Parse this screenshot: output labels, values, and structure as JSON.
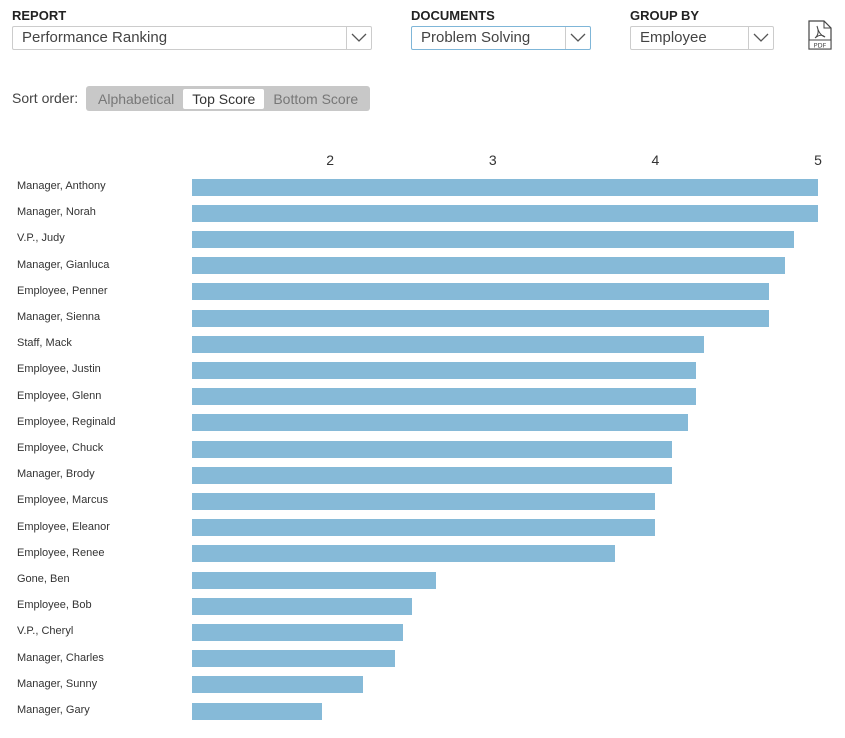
{
  "controls": {
    "report": {
      "label": "REPORT",
      "value": "Performance Ranking"
    },
    "documents": {
      "label": "DOCUMENTS",
      "value": "Problem Solving"
    },
    "group_by": {
      "label": "GROUP BY",
      "value": "Employee"
    },
    "pdf_icon": "pdf-file-icon"
  },
  "sort": {
    "label": "Sort order:",
    "options": [
      "Alphabetical",
      "Top Score",
      "Bottom Score"
    ],
    "selected": "Top Score"
  },
  "chart_data": {
    "type": "bar",
    "orientation": "horizontal",
    "xlim": [
      1.15,
      5
    ],
    "xticks": [
      "2",
      "3",
      "4",
      "5"
    ],
    "grid": false,
    "color": "#86bad8",
    "categories": [
      "Manager, Anthony",
      "Manager, Norah",
      "V.P., Judy",
      "Manager, Gianluca",
      "Employee, Penner",
      "Manager, Sienna",
      "Staff, Mack",
      "Employee, Justin",
      "Employee, Glenn",
      "Employee, Reginald",
      "Employee, Chuck",
      "Manager, Brody",
      "Employee, Marcus",
      "Employee, Eleanor",
      "Employee, Renee",
      "Gone, Ben",
      "Employee, Bob",
      "V.P., Cheryl",
      "Manager, Charles",
      "Manager, Sunny",
      "Manager, Gary"
    ],
    "values": [
      5.0,
      5.0,
      4.85,
      4.8,
      4.7,
      4.7,
      4.3,
      4.25,
      4.25,
      4.2,
      4.1,
      4.1,
      4.0,
      4.0,
      3.75,
      2.65,
      2.5,
      2.45,
      2.4,
      2.2,
      1.95
    ]
  }
}
